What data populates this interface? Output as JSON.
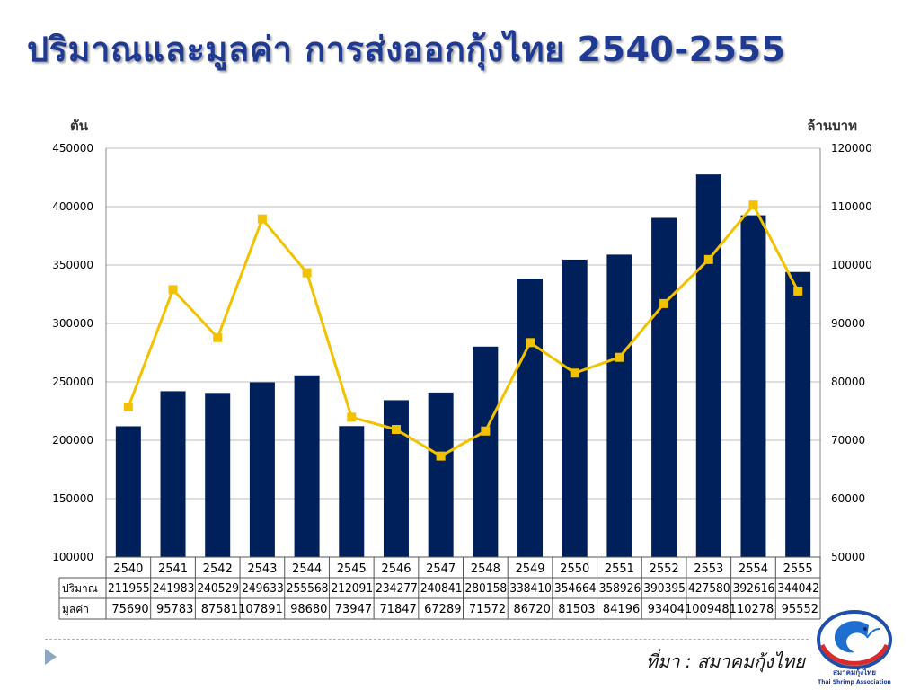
{
  "title": "ปริมาณและมูลค่า การส่งออกกุ้งไทย 2540-2555",
  "left_unit": "ตัน",
  "right_unit": "ล้านบาท",
  "source_text": "ที่มา : สมาคมกุ้งไทย",
  "logo": {
    "text1": "สมาคมกุ้งไทย",
    "text2": "Thai Shrimp Association"
  },
  "colors": {
    "bars": "#00205b",
    "line": "#f2c200",
    "title": "#1f3a93"
  },
  "chart_data": {
    "type": "bar",
    "categories": [
      "2540",
      "2541",
      "2542",
      "2543",
      "2544",
      "2545",
      "2546",
      "2547",
      "2548",
      "2549",
      "2550",
      "2551",
      "2552",
      "2553",
      "2554",
      "2555"
    ],
    "series": [
      {
        "name": "ปริมาณ",
        "type": "bar",
        "axis": "left",
        "values": [
          211955,
          241983,
          240529,
          249633,
          255568,
          212091,
          234277,
          240841,
          280158,
          338410,
          354664,
          358926,
          390395,
          427580,
          392616,
          344042
        ]
      },
      {
        "name": "มูลค่า",
        "type": "line",
        "axis": "right",
        "values": [
          75690,
          95783,
          87581,
          107891,
          98680,
          73947,
          71847,
          67289,
          71572,
          86720,
          81503,
          84196,
          93404,
          100948,
          110278,
          95552
        ]
      }
    ],
    "y_left": {
      "range": [
        100000,
        450000
      ],
      "ticks": [
        "100000",
        "150000",
        "200000",
        "250000",
        "300000",
        "350000",
        "400000",
        "450000"
      ]
    },
    "y_right": {
      "range": [
        50000,
        120000
      ],
      "ticks": [
        "50000",
        "60000",
        "70000",
        "80000",
        "90000",
        "100000",
        "110000",
        "120000"
      ]
    },
    "grid": true,
    "data_table": true
  }
}
